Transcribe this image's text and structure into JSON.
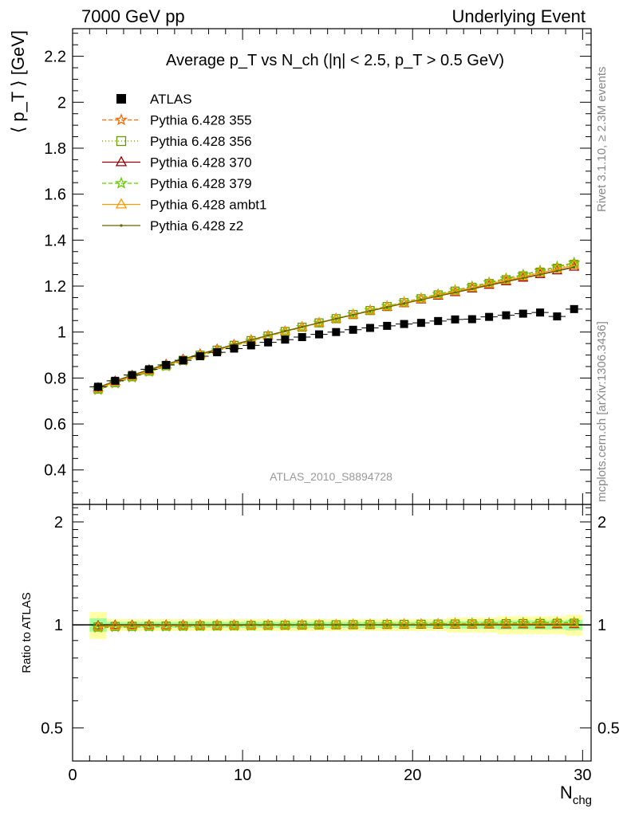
{
  "header": {
    "left": "7000 GeV pp",
    "right": "Underlying Event"
  },
  "side_labels": {
    "rivet": "Rivet 3.1.10, ≥ 2.3M events",
    "mcplots": "mcplots.cern.ch [arXiv:1306.3436]"
  },
  "watermark": "ATLAS_2010_S8894728",
  "ratio_ylabel": "Ratio to ATLAS",
  "chart_data": {
    "type": "line",
    "title": "Average pT vs Nch (|η| < 2.5, pT > 0.5 GeV)",
    "xlabel": "Nchg",
    "ylabel": "⟨ pT ⟩ [GeV]",
    "xlim": [
      0,
      30.5
    ],
    "ylim": [
      0.25,
      2.32
    ],
    "ratio_ylim": [
      0.4,
      2.25
    ],
    "xticks": [
      0,
      10,
      20,
      30
    ],
    "yticks": [
      0.4,
      0.6,
      0.8,
      1,
      1.2,
      1.4,
      1.6,
      1.8,
      2,
      2.2
    ],
    "ratio_yticks": [
      0.5,
      1,
      2
    ],
    "legend_position": "top-left",
    "x": [
      1.5,
      2.5,
      3.5,
      4.5,
      5.5,
      6.5,
      7.5,
      8.5,
      9.5,
      10.5,
      11.5,
      12.5,
      13.5,
      14.5,
      15.5,
      16.5,
      17.5,
      18.5,
      19.5,
      20.5,
      21.5,
      22.5,
      23.5,
      24.5,
      25.5,
      26.5,
      27.5,
      28.5,
      29.5
    ],
    "atlas": [
      0.762,
      0.788,
      0.813,
      0.838,
      0.857,
      0.877,
      0.895,
      0.912,
      0.928,
      0.942,
      0.955,
      0.967,
      0.978,
      0.99,
      1.0,
      1.01,
      1.018,
      1.027,
      1.035,
      1.04,
      1.048,
      1.055,
      1.056,
      1.066,
      1.073,
      1.08,
      1.085,
      1.068,
      1.1
    ],
    "atlas_rel_err": [
      0.045,
      0.02,
      0.02,
      0.02,
      0.02,
      0.02,
      0.02,
      0.02,
      0.02,
      0.02,
      0.02,
      0.02,
      0.02,
      0.02,
      0.02,
      0.02,
      0.02,
      0.02,
      0.02,
      0.02,
      0.02,
      0.025,
      0.025,
      0.025,
      0.03,
      0.03,
      0.03,
      0.03,
      0.035
    ],
    "series": [
      {
        "name": "ATLAS",
        "color": "#000000",
        "marker": "square",
        "dash": "none"
      },
      {
        "name": "Pythia 6.428 355",
        "color": "#ff6600",
        "marker": "star",
        "dash": "5,3",
        "ratio_slope": 0.0012
      },
      {
        "name": "Pythia 6.428 356",
        "color": "#669900",
        "marker": "open-square",
        "dash": "1,3",
        "ratio_slope": 0.0008
      },
      {
        "name": "Pythia 6.428 370",
        "color": "#990000",
        "marker": "open-triangle",
        "dash": "none",
        "ratio_slope": 0.0002
      },
      {
        "name": "Pythia 6.428 379",
        "color": "#66cc00",
        "marker": "star",
        "dash": "5,3",
        "ratio_slope": 0.0011
      },
      {
        "name": "Pythia 6.428 ambt1",
        "color": "#ff9900",
        "marker": "open-triangle",
        "dash": "none",
        "ratio_slope": 0.0006
      },
      {
        "name": "Pythia 6.428 z2",
        "color": "#666600",
        "marker": "dot",
        "dash": "none",
        "ratio_slope": 0.0001
      }
    ]
  }
}
